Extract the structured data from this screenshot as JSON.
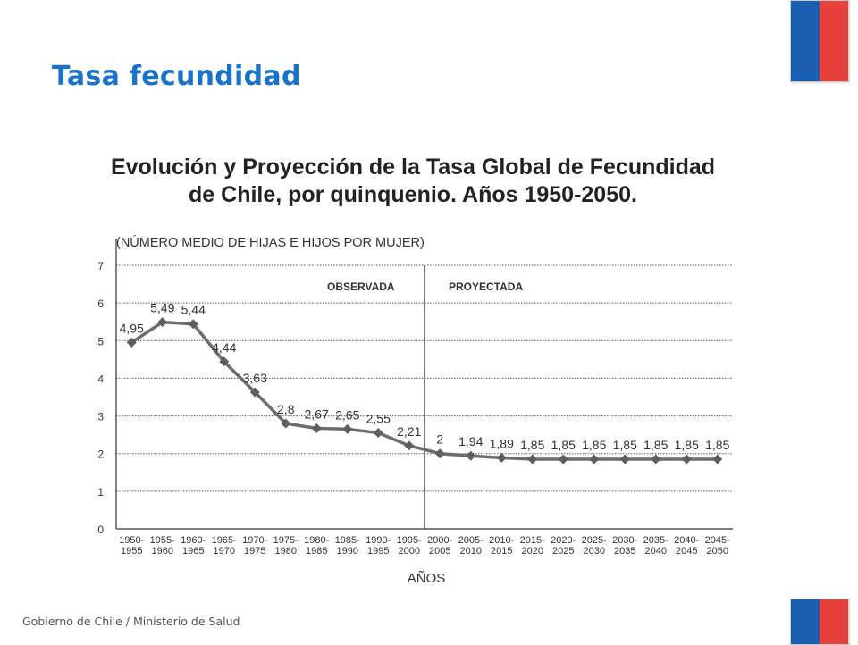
{
  "slide": {
    "title": "Tasa fecundidad",
    "footer": "Gobierno de Chile / Ministerio de Salud"
  },
  "colors": {
    "title": "#1a73c6",
    "flag_blue": "#1b5fb0",
    "flag_red": "#e8403d",
    "series": "#6d6d6d"
  },
  "chart_data": {
    "type": "line",
    "title_line1": "Evolución y Proyección de la Tasa Global de Fecundidad",
    "title_line2": "de Chile, por quinquenio. Años 1950-2050.",
    "ylabel": "(NÚMERO MEDIO DE HIJAS E HIJOS POR MUJER)",
    "xlabel": "AÑOS",
    "ylim": [
      0,
      7
    ],
    "yticks": [
      0,
      1,
      2,
      3,
      4,
      5,
      6,
      7
    ],
    "grid": true,
    "regions": {
      "left": "OBSERVADA",
      "right": "PROYECTADA",
      "divider_after_index": 9
    },
    "categories": [
      [
        "1950-",
        "1955"
      ],
      [
        "1955-",
        "1960"
      ],
      [
        "1960-",
        "1965"
      ],
      [
        "1965-",
        "1970"
      ],
      [
        "1970-",
        "1975"
      ],
      [
        "1975-",
        "1980"
      ],
      [
        "1980-",
        "1985"
      ],
      [
        "1985-",
        "1990"
      ],
      [
        "1990-",
        "1995"
      ],
      [
        "1995-",
        "2000"
      ],
      [
        "2000-",
        "2005"
      ],
      [
        "2005-",
        "2010"
      ],
      [
        "2010-",
        "2015"
      ],
      [
        "2015-",
        "2020"
      ],
      [
        "2020-",
        "2025"
      ],
      [
        "2025-",
        "2030"
      ],
      [
        "2030-",
        "2035"
      ],
      [
        "2035-",
        "2040"
      ],
      [
        "2040-",
        "2045"
      ],
      [
        "2045-",
        "2050"
      ]
    ],
    "values": [
      4.95,
      5.49,
      5.44,
      4.44,
      3.63,
      2.8,
      2.67,
      2.65,
      2.55,
      2.21,
      2,
      1.94,
      1.89,
      1.85,
      1.85,
      1.85,
      1.85,
      1.85,
      1.85,
      1.85
    ],
    "value_labels": [
      "4,95",
      "5,49",
      "5,44",
      "4,44",
      "3,63",
      "2,8",
      "2,67",
      "2,65",
      "2,55",
      "2,21",
      "2",
      "1,94",
      "1,89",
      "1,85",
      "1,85",
      "1,85",
      "1,85",
      "1,85",
      "1,85",
      "1,85"
    ]
  }
}
